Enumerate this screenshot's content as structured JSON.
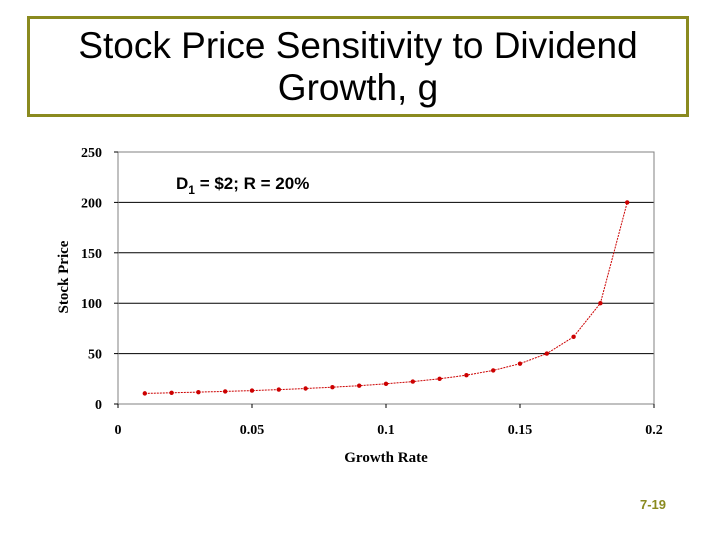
{
  "slide": {
    "title": "Stock Price Sensitivity to Dividend Growth, g",
    "slide_number": "7-19"
  },
  "chart_data": {
    "type": "scatter",
    "annotation": {
      "base": "D",
      "subscript": "1",
      "rest": " = $2; R = 20%"
    },
    "xlabel": "Growth Rate",
    "ylabel": "Stock Price",
    "xlim": [
      0,
      0.2
    ],
    "ylim": [
      0,
      250
    ],
    "xticks": [
      0,
      0.05,
      0.1,
      0.15,
      0.2
    ],
    "xtick_labels": [
      "0",
      "0.05",
      "0.1",
      "0.15",
      "0.2"
    ],
    "yticks": [
      0,
      50,
      100,
      150,
      200,
      250
    ],
    "ytick_labels": [
      "0",
      "50",
      "100",
      "150",
      "200",
      "250"
    ],
    "grid": "horizontal",
    "line_color": "#cc0000",
    "series": [
      {
        "x": [
          0.01,
          0.02,
          0.03,
          0.04,
          0.05,
          0.06,
          0.07,
          0.08,
          0.09,
          0.1,
          0.11,
          0.12,
          0.13,
          0.14,
          0.15,
          0.16,
          0.17,
          0.18,
          0.19
        ],
        "y": [
          10.53,
          11.11,
          11.76,
          12.5,
          13.33,
          14.29,
          15.38,
          16.67,
          18.18,
          20.0,
          22.22,
          25.0,
          28.57,
          33.33,
          40.0,
          50.0,
          66.67,
          100.0,
          200.0
        ]
      }
    ]
  }
}
